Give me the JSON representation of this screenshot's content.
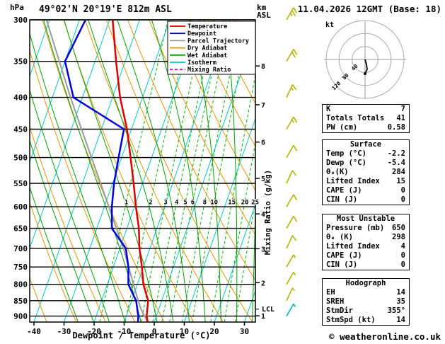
{
  "header": {
    "station": "49°02'N 20°19'E 812m ASL",
    "datetime": "11.04.2026 12GMT (Base: 18)",
    "pressure_unit": "hPa",
    "alt_unit": {
      "line1": "km",
      "line2": "ASL"
    },
    "copyright": "© weatheronline.co.uk"
  },
  "chart_data": {
    "type": "skewt-log-p",
    "pressure_axis": {
      "unit": "hPa",
      "ticks": [
        300,
        350,
        400,
        450,
        500,
        550,
        600,
        650,
        700,
        750,
        800,
        850,
        900
      ],
      "range": [
        300,
        920
      ]
    },
    "temp_axis": {
      "label": "Dewpoint / Temperature (°C)",
      "ticks": [
        -40,
        -30,
        -20,
        -10,
        0,
        10,
        20,
        30
      ]
    },
    "km_axis": {
      "ticks": [
        {
          "km": 1,
          "p": 899
        },
        {
          "km": 2,
          "p": 795
        },
        {
          "km": 3,
          "p": 701
        },
        {
          "km": 4,
          "p": 616
        },
        {
          "km": 5,
          "p": 540
        },
        {
          "km": 6,
          "p": 472
        },
        {
          "km": 7,
          "p": 411
        },
        {
          "km": 8,
          "p": 356
        }
      ]
    },
    "mixing_ratio": {
      "label": "Mixing Ratio (g/kg)",
      "values": [
        1,
        2,
        3,
        4,
        5,
        6,
        8,
        10,
        15,
        20,
        25
      ],
      "label_pressure": 590
    },
    "temperature_profile": [
      [
        920,
        -2.2
      ],
      [
        900,
        -3.2
      ],
      [
        850,
        -4.5
      ],
      [
        800,
        -8
      ],
      [
        750,
        -10.5
      ],
      [
        700,
        -13.5
      ],
      [
        650,
        -16
      ],
      [
        600,
        -19.5
      ],
      [
        550,
        -23
      ],
      [
        500,
        -27
      ],
      [
        450,
        -31.5
      ],
      [
        400,
        -37.5
      ],
      [
        350,
        -43
      ],
      [
        300,
        -49
      ]
    ],
    "dewpoint_profile": [
      [
        920,
        -5.4
      ],
      [
        900,
        -6
      ],
      [
        850,
        -8.5
      ],
      [
        800,
        -13
      ],
      [
        750,
        -15
      ],
      [
        700,
        -18
      ],
      [
        650,
        -25
      ],
      [
        600,
        -27.5
      ],
      [
        550,
        -29.5
      ],
      [
        500,
        -31
      ],
      [
        450,
        -32.5
      ],
      [
        400,
        -53
      ],
      [
        350,
        -60
      ],
      [
        300,
        -58
      ]
    ],
    "parcel_profile": [
      [
        920,
        -2.2
      ],
      [
        877,
        -5.9
      ],
      [
        850,
        -7.8
      ],
      [
        800,
        -11.3
      ],
      [
        700,
        -18.8
      ],
      [
        600,
        -28.5
      ],
      [
        500,
        -40
      ],
      [
        400,
        -54
      ],
      [
        300,
        -71
      ]
    ],
    "lcl": {
      "label": "LCL",
      "pressure": 877
    },
    "wind_barbs": [
      {
        "p": 300,
        "dir": 30,
        "spd": 25,
        "color": "#b4b400"
      },
      {
        "p": 350,
        "dir": 30,
        "spd": 20,
        "color": "#b4b400"
      },
      {
        "p": 400,
        "dir": 25,
        "spd": 15,
        "color": "#b4b400"
      },
      {
        "p": 450,
        "dir": 30,
        "spd": 15,
        "color": "#b4b400"
      },
      {
        "p": 500,
        "dir": 30,
        "spd": 10,
        "color": "#b4b400"
      },
      {
        "p": 550,
        "dir": 25,
        "spd": 10,
        "color": "#b4b400"
      },
      {
        "p": 600,
        "dir": 30,
        "spd": 10,
        "color": "#b4b400"
      },
      {
        "p": 650,
        "dir": 30,
        "spd": 10,
        "color": "#b4b400"
      },
      {
        "p": 700,
        "dir": 25,
        "spd": 10,
        "color": "#b4b400"
      },
      {
        "p": 750,
        "dir": 30,
        "spd": 5,
        "color": "#b4b400"
      },
      {
        "p": 800,
        "dir": 30,
        "spd": 5,
        "color": "#b4b400"
      },
      {
        "p": 850,
        "dir": 25,
        "spd": 5,
        "color": "#b4b400"
      },
      {
        "p": 900,
        "dir": 30,
        "spd": 5,
        "color": "#00b4b4"
      }
    ],
    "legend": [
      {
        "label": "Temperature",
        "color": "#dd0000"
      },
      {
        "label": "Dewpoint",
        "color": "#0000dd"
      },
      {
        "label": "Parcel Trajectory",
        "color": "#999999"
      },
      {
        "label": "Dry Adiabat",
        "color": "#e69500"
      },
      {
        "label": "Wet Adiabat",
        "color": "#00a000"
      },
      {
        "label": "Isotherm",
        "color": "#00c8c8"
      },
      {
        "label": "Mixing Ratio",
        "color": "#e000e0",
        "dash": true
      }
    ]
  },
  "hodograph": {
    "unit_label": "kt",
    "rings_kt": [
      40,
      80,
      120
    ],
    "ring_labels": [
      "40",
      "80",
      "120"
    ],
    "trace": [
      [
        0,
        0
      ],
      [
        2,
        7
      ],
      [
        3,
        14
      ],
      [
        0,
        20
      ]
    ]
  },
  "tables": [
    {
      "name": "indices-table",
      "header": null,
      "rows": [
        [
          "K",
          "7"
        ],
        [
          "Totals Totals",
          "41"
        ],
        [
          "PW (cm)",
          "0.58"
        ]
      ]
    },
    {
      "name": "surface-table",
      "header": "Surface",
      "rows": [
        [
          "Temp (°C)",
          "-2.2"
        ],
        [
          "Dewp (°C)",
          "-5.4"
        ],
        [
          "θₑ(K)",
          "284"
        ],
        [
          "Lifted Index",
          "15"
        ],
        [
          "CAPE (J)",
          "0"
        ],
        [
          "CIN (J)",
          "0"
        ]
      ]
    },
    {
      "name": "most-unstable-table",
      "header": "Most Unstable",
      "rows": [
        [
          "Pressure (mb)",
          "650"
        ],
        [
          "θₑ (K)",
          "298"
        ],
        [
          "Lifted Index",
          "4"
        ],
        [
          "CAPE (J)",
          "0"
        ],
        [
          "CIN (J)",
          "0"
        ]
      ]
    },
    {
      "name": "hodograph-table",
      "header": "Hodograph",
      "rows": [
        [
          "EH",
          "14"
        ],
        [
          "SREH",
          "35"
        ],
        [
          "StmDir",
          "355°"
        ],
        [
          "StmSpd (kt)",
          "14"
        ]
      ]
    }
  ]
}
